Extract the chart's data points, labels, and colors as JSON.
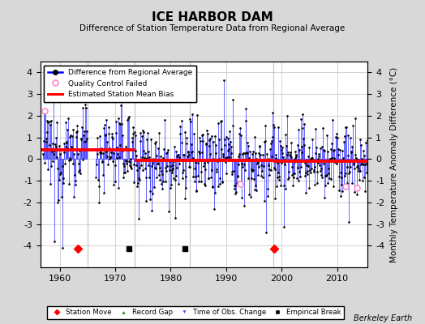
{
  "title": "ICE HARBOR DAM",
  "subtitle": "Difference of Station Temperature Data from Regional Average",
  "ylabel": "Monthly Temperature Anomaly Difference (°C)",
  "xlabel_note": "Berkeley Earth",
  "xlim": [
    1956.5,
    2015.5
  ],
  "ylim": [
    -5,
    4.5
  ],
  "yticks": [
    -4,
    -3,
    -2,
    -1,
    0,
    1,
    2,
    3,
    4
  ],
  "xticks": [
    1960,
    1970,
    1980,
    1990,
    2000,
    2010
  ],
  "background_color": "#d8d8d8",
  "plot_bg_color": "#ffffff",
  "bias_segments": [
    {
      "x_start": 1956.5,
      "x_end": 1965.0,
      "bias": 0.42
    },
    {
      "x_start": 1965.0,
      "x_end": 1973.5,
      "bias": 0.42
    },
    {
      "x_start": 1973.5,
      "x_end": 1983.5,
      "bias": -0.05
    },
    {
      "x_start": 1983.5,
      "x_end": 1998.5,
      "bias": -0.05
    },
    {
      "x_start": 1998.5,
      "x_end": 2015.5,
      "bias": -0.1
    }
  ],
  "break_years": [
    1965.0,
    1973.5,
    1983.5,
    1998.5
  ],
  "station_moves": [
    1963.2,
    1998.7
  ],
  "empirical_breaks": [
    1972.5,
    1982.5
  ],
  "qc_fail_years": [
    1957.25,
    1992.5,
    2011.5,
    2013.5
  ],
  "qc_fail_vals": [
    2.2,
    -1.15,
    -1.25,
    -1.35
  ],
  "seed": 12345,
  "start_year": 1957.0,
  "end_year": 2015.5
}
